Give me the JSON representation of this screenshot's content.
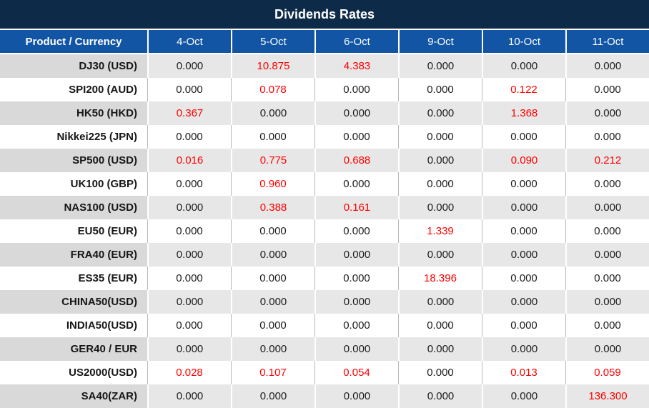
{
  "title": "Dividends Rates",
  "colors": {
    "title_bar_bg": "#0e2a49",
    "header_bg": "#1155a4",
    "header_text": "#ffffff",
    "band_gray_cell": "#e8e7e7",
    "band_gray_product_cell": "#d9d9d9",
    "band_white_cell": "#ffffff",
    "value_text": "#1c1c1c",
    "nonzero_value_red": "#fe0000"
  },
  "chart_data": {
    "type": "table",
    "title": "Dividends Rates",
    "columns": [
      "Product / Currency",
      "4-Oct",
      "5-Oct",
      "6-Oct",
      "9-Oct",
      "10-Oct",
      "11-Oct"
    ],
    "rows": [
      {
        "product": "DJ30 (USD)",
        "values": [
          "0.000",
          "10.875",
          "4.383",
          "0.000",
          "0.000",
          "0.000"
        ]
      },
      {
        "product": "SPI200 (AUD)",
        "values": [
          "0.000",
          "0.078",
          "0.000",
          "0.000",
          "0.122",
          "0.000"
        ]
      },
      {
        "product": "HK50 (HKD)",
        "values": [
          "0.367",
          "0.000",
          "0.000",
          "0.000",
          "1.368",
          "0.000"
        ]
      },
      {
        "product": "Nikkei225 (JPN)",
        "values": [
          "0.000",
          "0.000",
          "0.000",
          "0.000",
          "0.000",
          "0.000"
        ]
      },
      {
        "product": "SP500 (USD)",
        "values": [
          "0.016",
          "0.775",
          "0.688",
          "0.000",
          "0.090",
          "0.212"
        ]
      },
      {
        "product": "UK100 (GBP)",
        "values": [
          "0.000",
          "0.960",
          "0.000",
          "0.000",
          "0.000",
          "0.000"
        ]
      },
      {
        "product": "NAS100 (USD)",
        "values": [
          "0.000",
          "0.388",
          "0.161",
          "0.000",
          "0.000",
          "0.000"
        ]
      },
      {
        "product": "EU50 (EUR)",
        "values": [
          "0.000",
          "0.000",
          "0.000",
          "1.339",
          "0.000",
          "0.000"
        ]
      },
      {
        "product": "FRA40 (EUR)",
        "values": [
          "0.000",
          "0.000",
          "0.000",
          "0.000",
          "0.000",
          "0.000"
        ]
      },
      {
        "product": "ES35 (EUR)",
        "values": [
          "0.000",
          "0.000",
          "0.000",
          "18.396",
          "0.000",
          "0.000"
        ]
      },
      {
        "product": "CHINA50(USD)",
        "values": [
          "0.000",
          "0.000",
          "0.000",
          "0.000",
          "0.000",
          "0.000"
        ]
      },
      {
        "product": "INDIA50(USD)",
        "values": [
          "0.000",
          "0.000",
          "0.000",
          "0.000",
          "0.000",
          "0.000"
        ]
      },
      {
        "product": "GER40 / EUR",
        "values": [
          "0.000",
          "0.000",
          "0.000",
          "0.000",
          "0.000",
          "0.000"
        ]
      },
      {
        "product": "US2000(USD)",
        "values": [
          "0.028",
          "0.107",
          "0.054",
          "0.000",
          "0.013",
          "0.059"
        ]
      },
      {
        "product": "SA40(ZAR)",
        "values": [
          "0.000",
          "0.000",
          "0.000",
          "0.000",
          "0.000",
          "136.300"
        ]
      }
    ],
    "value_color_rule": "non-zero values rendered in red"
  }
}
